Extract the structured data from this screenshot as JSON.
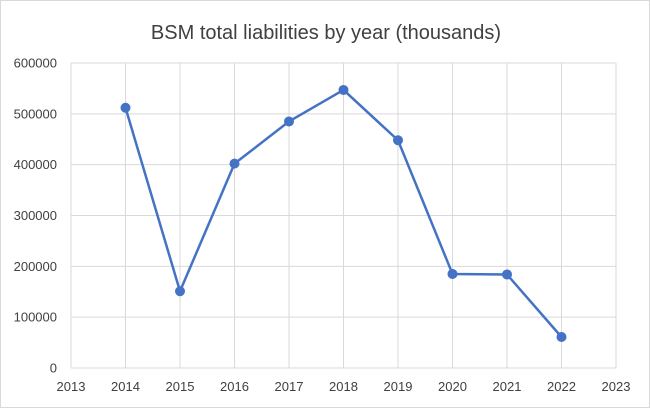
{
  "chart_data": {
    "type": "scatter",
    "title": "BSM total liabilities by year (thousands)",
    "xlabel": "",
    "ylabel": "",
    "xlim": [
      2013,
      2023
    ],
    "ylim": [
      0,
      600000
    ],
    "x_ticks": [
      "2013",
      "2014",
      "2015",
      "2016",
      "2017",
      "2018",
      "2019",
      "2020",
      "2021",
      "2022",
      "2023"
    ],
    "y_ticks": [
      "0",
      "100000",
      "200000",
      "300000",
      "400000",
      "500000",
      "600000"
    ],
    "grid": "both",
    "legend": "none",
    "series": [
      {
        "color": "#4472c4",
        "x": [
          2014,
          2015,
          2016,
          2017,
          2018,
          2019,
          2020,
          2021,
          2022
        ],
        "y": [
          512000,
          151000,
          402000,
          485000,
          547000,
          448000,
          185000,
          184000,
          61000
        ]
      }
    ]
  }
}
